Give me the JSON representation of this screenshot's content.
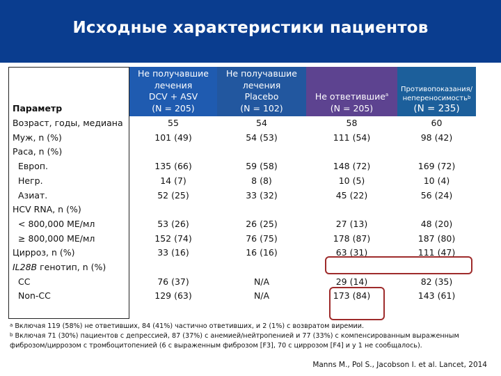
{
  "title": "Исходные характеристики пациентов",
  "colors": {
    "title_bar": "#0a3d8f",
    "col1": "#1f5bb0",
    "col2": "#22579f",
    "col3": "#5d4390",
    "col4": "#1c5f9b",
    "highlight": "#9e2b2b"
  },
  "header": {
    "param": "Параметр",
    "c1": [
      "Не получавшие",
      "лечения",
      "DCV + ASV",
      "(N = 205)"
    ],
    "c2": [
      "Не получавшие",
      "лечения",
      "Placebo",
      "(N = 102)"
    ],
    "c3": [
      "Не ответившие",
      "(N = 205)"
    ],
    "c3_sup": "a",
    "c4": [
      "Противопоказания/",
      "непереносимость",
      "(N = 235)"
    ],
    "c4_sup": "b"
  },
  "rows": [
    {
      "label": "Возраст, годы, медиана",
      "values": [
        "55",
        "54",
        "58",
        "60"
      ]
    },
    {
      "label": "Муж, n (%)",
      "values": [
        "101 (49)",
        "54 (53)",
        "111 (54)",
        "98 (42)"
      ]
    },
    {
      "label": "Раса, n (%)",
      "values": [
        "",
        "",
        "",
        ""
      ]
    },
    {
      "label": "Европ.",
      "indent": true,
      "values": [
        "135 (66)",
        "59 (58)",
        "148 (72)",
        "169 (72)"
      ]
    },
    {
      "label": "Негр.",
      "indent": true,
      "values": [
        "14 (7)",
        "8 (8)",
        "10 (5)",
        "10 (4)"
      ]
    },
    {
      "label": "Азиат.",
      "indent": true,
      "values": [
        "52 (25)",
        "33 (32)",
        "45 (22)",
        "56 (24)"
      ]
    },
    {
      "label": "HCV RNA, n (%)",
      "values": [
        "",
        "",
        "",
        ""
      ]
    },
    {
      "label": "< 800,000 МЕ/мл",
      "indent": true,
      "values": [
        "53 (26)",
        "26 (25)",
        "27 (13)",
        "48 (20)"
      ]
    },
    {
      "label": "≥ 800,000 МЕ/мл",
      "indent": true,
      "values": [
        "152 (74)",
        "76 (75)",
        "178 (87)",
        "187 (80)"
      ]
    },
    {
      "label": "Цирроз, n (%)",
      "values": [
        "33 (16)",
        "16 (16)",
        "63 (31)",
        "111 (47)"
      ]
    },
    {
      "label_italic": "IL28B",
      "label": " генотип, n (%)",
      "values": [
        "",
        "",
        "",
        ""
      ]
    },
    {
      "label": "CC",
      "indent": true,
      "values": [
        "76 (37)",
        "N/A",
        "29 (14)",
        "82 (35)"
      ]
    },
    {
      "label": "Non-CC",
      "indent": true,
      "values": [
        "129 (63)",
        "N/A",
        "173 (84)",
        "143 (61)"
      ]
    }
  ],
  "footnotes": [
    {
      "sup": "a",
      "text": " Включая 119 (58%) не ответивших, 84 (41%) частично ответивших, и 2 (1%) с возвратом виремии."
    },
    {
      "sup": "b",
      "text": " Включая 71 (30%) пациентов с депрессией, 87 (37%) с анемией/нейтропенией и 77 (33%) с компенсированным выраженным"
    },
    {
      "sup": "",
      "text": "фиброзом/циррозом с тромбоцитопенией (6 с выраженным фиброзом [F3], 70 с циррозом [F4] и у 1 не сообщалось)."
    }
  ],
  "citation": "Manns M., Pol S., Jacobson I. et al. Lancet, 2014"
}
